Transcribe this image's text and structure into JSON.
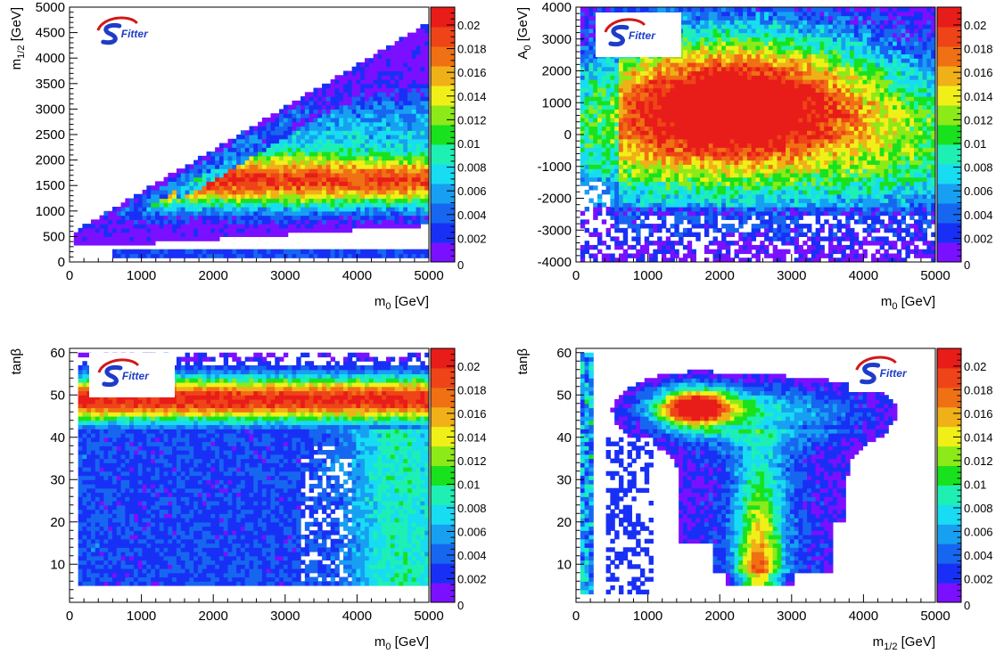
{
  "logo_text": "Fitter",
  "palette": {
    "colors": [
      "#7a10ff",
      "#1830f5",
      "#1766f0",
      "#17a0f2",
      "#17dcf2",
      "#1ef0b4",
      "#18e21e",
      "#8cea18",
      "#f0f018",
      "#f0b018",
      "#f07014",
      "#ee4418",
      "#e81c18"
    ],
    "frame": "#000000",
    "background": "#ffffff"
  },
  "colorbar": {
    "labels": [
      "0",
      "0.002",
      "0.004",
      "0.006",
      "0.008",
      "0.01",
      "0.012",
      "0.014",
      "0.016",
      "0.018",
      "0.02"
    ],
    "values": [
      0,
      0.002,
      0.004,
      0.006,
      0.008,
      0.01,
      0.012,
      0.014,
      0.016,
      0.018,
      0.02
    ],
    "max": 0.0215
  },
  "chart_data": [
    {
      "type": "heatmap",
      "title": "",
      "xlabel": "m_0 [GeV]",
      "ylabel": "m_1/2 [GeV]",
      "xlim": [
        0,
        5000
      ],
      "ylim": [
        0,
        5000
      ],
      "xticks": [
        "0",
        "1000",
        "2000",
        "3000",
        "4000",
        "5000"
      ],
      "yticks": [
        "0",
        "500",
        "1000",
        "1500",
        "2000",
        "2500",
        "3000",
        "3500",
        "4000",
        "4500",
        "5000"
      ],
      "zlim": [
        0,
        0.0215
      ],
      "logo_position": "top-left",
      "features": "high-probability band at m_1/2 about 1000-2000 GeV across all m_0; lower wedge bounded by diagonal edge up to m_1/2 about 4500 GeV; thin band near m_1/2 about 150 GeV"
    },
    {
      "type": "heatmap",
      "title": "",
      "xlabel": "m_0 [GeV]",
      "ylabel": "A_0 [GeV]",
      "xlim": [
        0,
        5000
      ],
      "ylim": [
        -4000,
        4000
      ],
      "xticks": [
        "0",
        "1000",
        "2000",
        "3000",
        "4000",
        "5000"
      ],
      "yticks": [
        "-4000",
        "-3000",
        "-2000",
        "-1000",
        "0",
        "1000",
        "2000",
        "3000",
        "4000"
      ],
      "zlim": [
        0,
        0.0215
      ],
      "logo_position": "top-left",
      "features": "high-probability region centered near m_0 about 2000 GeV, A_0 about 1000 GeV; density falls off toward negative A_0"
    },
    {
      "type": "heatmap",
      "title": "",
      "xlabel": "m_0 [GeV]",
      "ylabel": "tanβ",
      "xlim": [
        0,
        5000
      ],
      "ylim": [
        1,
        61
      ],
      "xticks": [
        "0",
        "1000",
        "2000",
        "3000",
        "4000",
        "5000"
      ],
      "yticks": [
        "10",
        "20",
        "30",
        "40",
        "50",
        "60"
      ],
      "zlim": [
        0,
        0.0215
      ],
      "logo_position": "top-left",
      "features": "peak band at tanβ about 45-52 across all m_0; low-density plateau below tanβ about 40"
    },
    {
      "type": "heatmap",
      "title": "",
      "xlabel": "m_1/2 [GeV]",
      "ylabel": "tanβ",
      "xlim": [
        0,
        5000
      ],
      "ylim": [
        1,
        61
      ],
      "xticks": [
        "0",
        "1000",
        "2000",
        "3000",
        "4000",
        "5000"
      ],
      "yticks": [
        "10",
        "20",
        "30",
        "40",
        "50",
        "60"
      ],
      "zlim": [
        0,
        0.0215
      ],
      "logo_position": "top-right",
      "features": "peak near m_1/2 about 1600 GeV, tanβ about 48; vertical stem at m_1/2 about 2500 GeV down to tanβ about 5; thin strip at m_1/2 about 100 GeV"
    }
  ]
}
